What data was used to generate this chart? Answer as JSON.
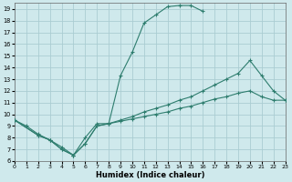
{
  "xlabel": "Humidex (Indice chaleur)",
  "xlim": [
    0,
    23
  ],
  "ylim": [
    6,
    19.5
  ],
  "yticks": [
    6,
    7,
    8,
    9,
    10,
    11,
    12,
    13,
    14,
    15,
    16,
    17,
    18,
    19
  ],
  "xticks": [
    0,
    1,
    2,
    3,
    4,
    5,
    6,
    7,
    8,
    9,
    10,
    11,
    12,
    13,
    14,
    15,
    16,
    17,
    18,
    19,
    20,
    21,
    22,
    23
  ],
  "bg_color": "#cfe9ec",
  "grid_color": "#aacdd2",
  "line_color": "#2e7d6e",
  "line1_x": [
    0,
    1,
    2,
    3,
    4,
    5,
    6,
    7,
    8,
    9,
    10,
    11,
    12,
    13,
    14,
    15,
    16
  ],
  "line1_y": [
    9.5,
    9.0,
    8.3,
    7.8,
    7.0,
    6.5,
    7.5,
    9.0,
    9.2,
    13.3,
    15.3,
    17.8,
    18.5,
    19.2,
    19.3,
    19.3,
    18.8
  ],
  "line2_x": [
    0,
    2,
    3,
    4,
    5,
    6,
    7,
    8,
    9,
    10,
    11,
    12,
    13,
    14,
    15,
    16,
    17,
    18,
    19,
    20,
    21,
    22,
    23
  ],
  "line2_y": [
    9.5,
    8.2,
    7.8,
    7.0,
    6.5,
    7.5,
    9.0,
    9.2,
    9.4,
    9.6,
    9.8,
    10.0,
    10.2,
    10.5,
    10.7,
    11.0,
    11.3,
    11.5,
    11.8,
    12.0,
    11.5,
    11.2,
    11.2
  ],
  "line3_x": [
    0,
    2,
    3,
    4,
    5,
    6,
    7,
    8,
    9,
    10,
    11,
    12,
    13,
    14,
    15,
    16,
    17,
    18,
    19,
    20,
    21,
    22,
    23
  ],
  "line3_y": [
    9.5,
    8.2,
    7.8,
    7.2,
    6.5,
    8.0,
    9.2,
    9.2,
    9.5,
    9.8,
    10.2,
    10.5,
    10.8,
    11.2,
    11.5,
    12.0,
    12.5,
    13.0,
    13.5,
    14.6,
    13.3,
    12.0,
    11.2
  ]
}
